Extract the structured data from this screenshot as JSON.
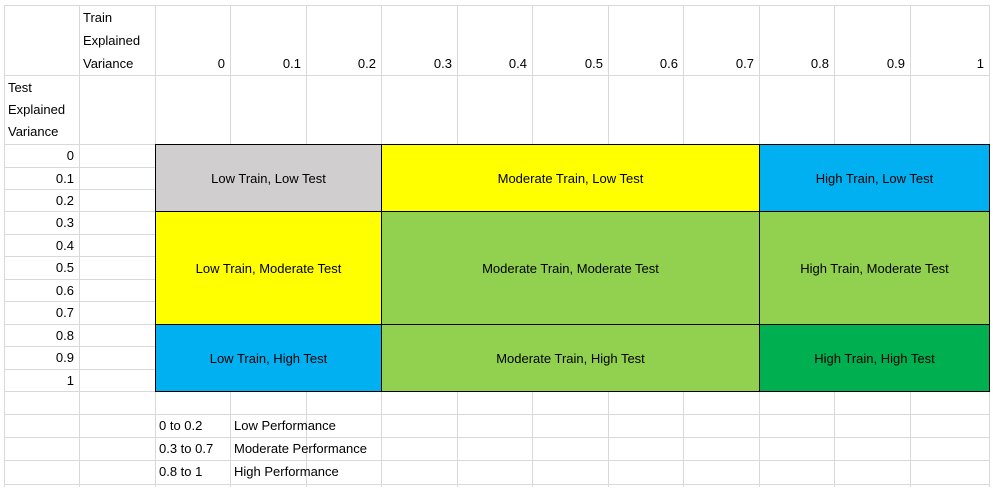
{
  "sheet": {
    "corner_train_lines": [
      "Train",
      "Explained",
      "Variance"
    ],
    "corner_test_lines": [
      "Test",
      "Explained",
      "Variance"
    ],
    "train_values": [
      "0",
      "0.1",
      "0.2",
      "0.3",
      "0.4",
      "0.5",
      "0.6",
      "0.7",
      "0.8",
      "0.9",
      "1"
    ],
    "test_values": [
      "0",
      "0.1",
      "0.2",
      "0.3",
      "0.4",
      "0.5",
      "0.6",
      "0.7",
      "0.8",
      "0.9",
      "1"
    ]
  },
  "blocks": [
    {
      "label": "Low Train, Low Test",
      "color": "#d0cece"
    },
    {
      "label": "Moderate Train, Low Test",
      "color": "#ffff00"
    },
    {
      "label": "High Train, Low Test",
      "color": "#00b0f0"
    },
    {
      "label": "Low Train, Moderate Test",
      "color": "#ffff00"
    },
    {
      "label": "Moderate Train, Moderate Test",
      "color": "#92d050"
    },
    {
      "label": "High Train, Moderate Test",
      "color": "#92d050"
    },
    {
      "label": "Low Train, High Test",
      "color": "#00b0f0"
    },
    {
      "label": "Moderate Train, High Test",
      "color": "#92d050"
    },
    {
      "label": "High Train, High Test",
      "color": "#00b050"
    }
  ],
  "legend": [
    {
      "range": "0 to 0.2",
      "text": "Low Performance"
    },
    {
      "range": "0.3 to 0.7",
      "text": "Moderate Performance"
    },
    {
      "range": "0.8 to 1",
      "text": "High Performance"
    }
  ]
}
